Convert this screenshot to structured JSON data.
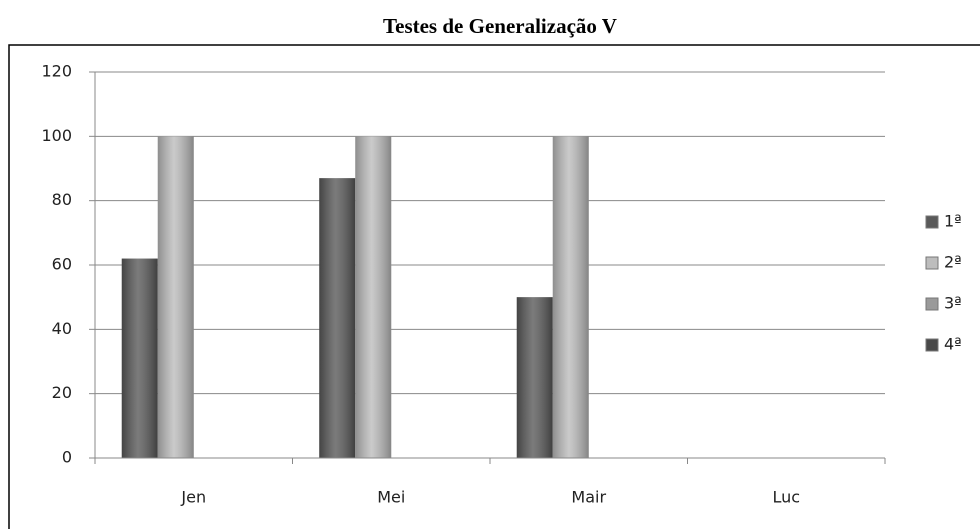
{
  "chart_data": {
    "type": "bar",
    "title": "Testes de Generalização V",
    "categories": [
      "Jen",
      "Mei",
      "Mair",
      "Luc"
    ],
    "series": [
      {
        "name": "1ª",
        "color": "#5a5a5a",
        "values": [
          62,
          87,
          50,
          null
        ]
      },
      {
        "name": "2ª",
        "color": "#bdbdbd",
        "values": [
          100,
          100,
          100,
          null
        ]
      },
      {
        "name": "3ª",
        "color": "#9a9a9a",
        "values": [
          null,
          null,
          null,
          null
        ]
      },
      {
        "name": "4ª",
        "color": "#484848",
        "values": [
          null,
          null,
          null,
          null
        ]
      }
    ],
    "ylim": [
      0,
      120
    ],
    "yticks": [
      0,
      20,
      40,
      60,
      80,
      100,
      120
    ],
    "grid": true,
    "legend": "right"
  }
}
